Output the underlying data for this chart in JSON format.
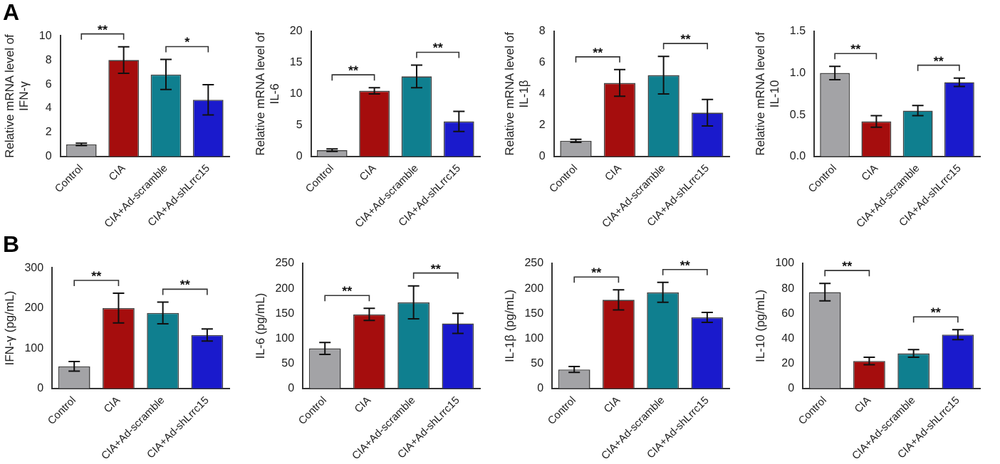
{
  "chart_data": [
    {
      "type": "bar",
      "title": "A",
      "ylabel": "Relative mRNA level of IFN-γ",
      "categories": [
        "Control",
        "CIA",
        "CIA+Ad-scramble",
        "CIA+Ad-shLrrc15"
      ],
      "ylim": [
        0,
        10
      ],
      "yticks": [
        0,
        2,
        4,
        6,
        8,
        10
      ],
      "annotations": [
        "**",
        "*"
      ],
      "colors": [
        "#a3a3a6",
        "#a50d0d",
        "#0f7f8f",
        "#1a1acc"
      ],
      "values": [
        1.0,
        8.0,
        6.8,
        4.7
      ],
      "errors": [
        0.1,
        1.1,
        1.25,
        1.25
      ]
    },
    {
      "type": "bar",
      "ylabel": "Relative mRNA level of IL-6",
      "categories": [
        "Control",
        "CIA",
        "CIA+Ad-scramble",
        "CIA+Ad-shLrrc15"
      ],
      "ylim": [
        0,
        20
      ],
      "yticks": [
        0,
        5,
        10,
        15,
        20
      ],
      "annotations": [
        "**",
        "**"
      ],
      "colors": [
        "#a3a3a6",
        "#a50d0d",
        "#0f7f8f",
        "#1a1acc"
      ],
      "values": [
        1.0,
        10.5,
        12.8,
        5.6
      ],
      "errors": [
        0.2,
        0.5,
        1.8,
        1.6
      ]
    },
    {
      "type": "bar",
      "ylabel": "Relative mRNA level of IL-1β",
      "categories": [
        "Control",
        "CIA",
        "CIA+Ad-scramble",
        "CIA+Ad-shLrrc15"
      ],
      "ylim": [
        0,
        8
      ],
      "yticks": [
        0,
        2,
        4,
        6,
        8
      ],
      "annotations": [
        "**",
        "**"
      ],
      "colors": [
        "#a3a3a6",
        "#a50d0d",
        "#0f7f8f",
        "#1a1acc"
      ],
      "values": [
        1.0,
        4.7,
        5.2,
        2.8
      ],
      "errors": [
        0.1,
        0.85,
        1.2,
        0.85
      ]
    },
    {
      "type": "bar",
      "ylabel": "Relative mRNA level of IL-10",
      "categories": [
        "Control",
        "CIA",
        "CIA+Ad-scramble",
        "CIA+Ad-shLrrc15"
      ],
      "ylim": [
        0,
        1.5
      ],
      "yticks": [
        {
          "value": 0,
          "label": "0.0"
        },
        {
          "value": 0.5,
          "label": "0.5"
        },
        {
          "value": 1,
          "label": "1.0"
        },
        {
          "value": 1.5,
          "label": "1.5"
        }
      ],
      "annotations": [
        "**",
        "**"
      ],
      "colors": [
        "#a3a3a6",
        "#a50d0d",
        "#0f7f8f",
        "#1a1acc"
      ],
      "values": [
        1.0,
        0.42,
        0.55,
        0.89
      ],
      "errors": [
        0.08,
        0.07,
        0.06,
        0.05
      ]
    },
    {
      "type": "bar",
      "title": "B",
      "ylabel": "IFN-γ (pg/mL)",
      "categories": [
        "Control",
        "CIA",
        "CIA+Ad-scramble",
        "CIA+Ad-shLrrc15"
      ],
      "ylim": [
        0,
        300
      ],
      "yticks": [
        0,
        100,
        200,
        300
      ],
      "annotations": [
        "**",
        "**"
      ],
      "colors": [
        "#a3a3a6",
        "#a50d0d",
        "#0f7f8f",
        "#1a1acc"
      ],
      "values": [
        55,
        200,
        188,
        133
      ],
      "errors": [
        12,
        37,
        27,
        15
      ]
    },
    {
      "type": "bar",
      "ylabel": "IL-6 (pg/mL)",
      "categories": [
        "Control",
        "CIA",
        "CIA+Ad-scramble",
        "CIA+Ad-shLrrc15"
      ],
      "ylim": [
        0,
        250
      ],
      "yticks": [
        0,
        50,
        100,
        150,
        200,
        250
      ],
      "annotations": [
        "**",
        "**"
      ],
      "colors": [
        "#a3a3a6",
        "#a50d0d",
        "#0f7f8f",
        "#1a1acc"
      ],
      "values": [
        80,
        148,
        172,
        130
      ],
      "errors": [
        12,
        12,
        33,
        20
      ]
    },
    {
      "type": "bar",
      "ylabel": "IL-1β (pg/mL)",
      "categories": [
        "Control",
        "CIA",
        "CIA+Ad-scramble",
        "CIA+Ad-shLrrc15"
      ],
      "ylim": [
        0,
        250
      ],
      "yticks": [
        0,
        50,
        100,
        150,
        200,
        250
      ],
      "annotations": [
        "**",
        "**"
      ],
      "colors": [
        "#a3a3a6",
        "#a50d0d",
        "#0f7f8f",
        "#1a1acc"
      ],
      "values": [
        38,
        177,
        192,
        142
      ],
      "errors": [
        6,
        20,
        20,
        10
      ]
    },
    {
      "type": "bar",
      "ylabel": "IL-10 (pg/mL)",
      "categories": [
        "Control",
        "CIA",
        "CIA+Ad-scramble",
        "CIA+Ad-shLrrc15"
      ],
      "ylim": [
        0,
        100
      ],
      "yticks": [
        0,
        20,
        40,
        60,
        80,
        100
      ],
      "annotations": [
        "**",
        "**"
      ],
      "colors": [
        "#a3a3a6",
        "#a50d0d",
        "#0f7f8f",
        "#1a1acc"
      ],
      "values": [
        77,
        22,
        28,
        43
      ],
      "errors": [
        7,
        3,
        3,
        4
      ]
    }
  ]
}
